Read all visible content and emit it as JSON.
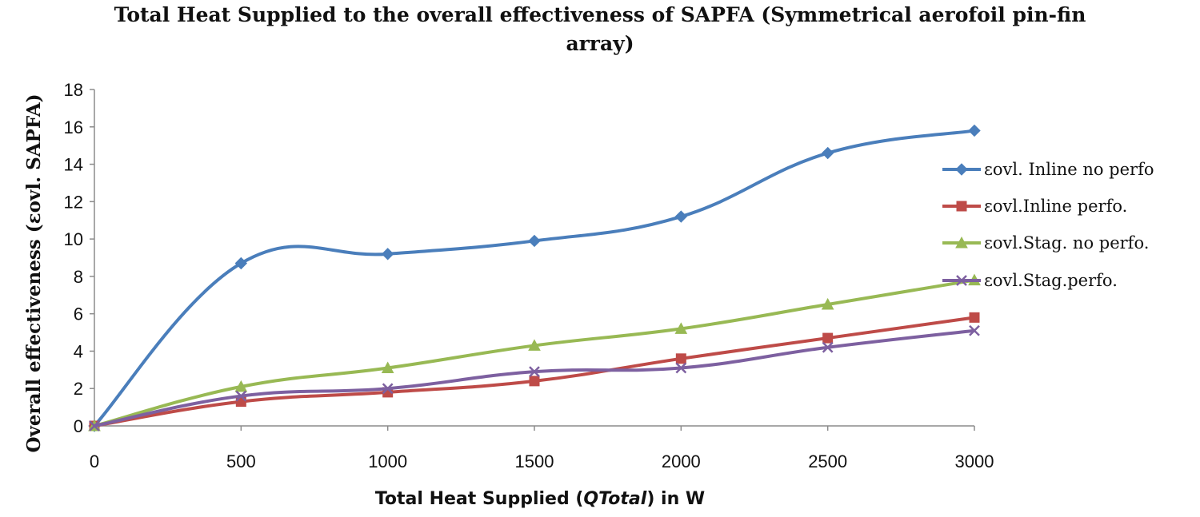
{
  "chart_data": {
    "type": "line",
    "title_line1": "Total Heat Supplied to the overall effectiveness of SAPFA (Symmetrical aerofoil pin-fin",
    "title_line2": "array)",
    "xlabel_pre": "Total Heat Supplied (",
    "xlabel_italic": "QTotal",
    "xlabel_post": ") in W",
    "ylabel": "Overall effectiveness (εovl. SAPFA)",
    "x": [
      0,
      500,
      1000,
      1500,
      2000,
      2500,
      3000
    ],
    "xlim": [
      0,
      3000
    ],
    "ylim": [
      0,
      18
    ],
    "yticks": [
      0,
      2,
      4,
      6,
      8,
      10,
      12,
      14,
      16,
      18
    ],
    "legend_position": "right",
    "series": [
      {
        "name": "εovl. Inline no perfo",
        "color": "#4a7ebb",
        "marker": "diamond",
        "values": [
          0,
          8.7,
          9.2,
          9.9,
          11.2,
          14.6,
          15.8
        ]
      },
      {
        "name": "εovl.Inline perfo.",
        "color": "#be4b48",
        "marker": "square",
        "values": [
          0,
          1.3,
          1.8,
          2.4,
          3.6,
          4.7,
          5.8
        ]
      },
      {
        "name": "εovl.Stag. no perfo.",
        "color": "#98b954",
        "marker": "triangle",
        "values": [
          0,
          2.1,
          3.1,
          4.3,
          5.2,
          6.5,
          7.8
        ]
      },
      {
        "name": "εovl.Stag.perfo.",
        "color": "#7d60a0",
        "marker": "x",
        "values": [
          0,
          1.6,
          2.0,
          2.9,
          3.1,
          4.2,
          5.1
        ]
      }
    ]
  }
}
